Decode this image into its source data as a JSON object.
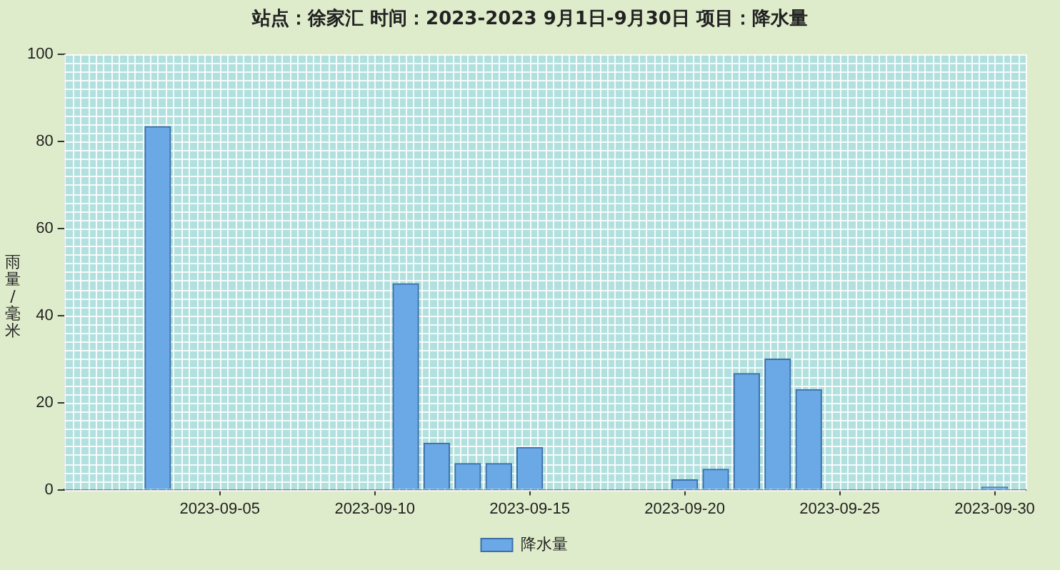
{
  "chart_data": {
    "type": "bar",
    "title": "站点：徐家汇  时间：2023-2023   9月1日-9月30日  项目：降水量",
    "ylabel": "雨量/毫米",
    "x": [
      "2023-09-03",
      "2023-09-11",
      "2023-09-12",
      "2023-09-13",
      "2023-09-14",
      "2023-09-15",
      "2023-09-20",
      "2023-09-21",
      "2023-09-22",
      "2023-09-23",
      "2023-09-24",
      "2023-09-30"
    ],
    "series": [
      {
        "name": "降水量",
        "color": "#6aa8e6",
        "values": [
          83.4,
          47.3,
          10.7,
          6,
          6,
          9.7,
          2.3,
          4.7,
          26.7,
          30,
          23,
          0.6
        ]
      }
    ],
    "xlim": [
      "2023-08-31",
      "2023-10-01"
    ],
    "xticks": [
      "2023-09-05",
      "2023-09-10",
      "2023-09-15",
      "2023-09-20",
      "2023-09-25",
      "2023-09-30"
    ],
    "ylim": [
      0,
      100
    ],
    "yticks": [
      0,
      20,
      40,
      60,
      80,
      100
    ],
    "grid": true,
    "legend": "bottom"
  }
}
